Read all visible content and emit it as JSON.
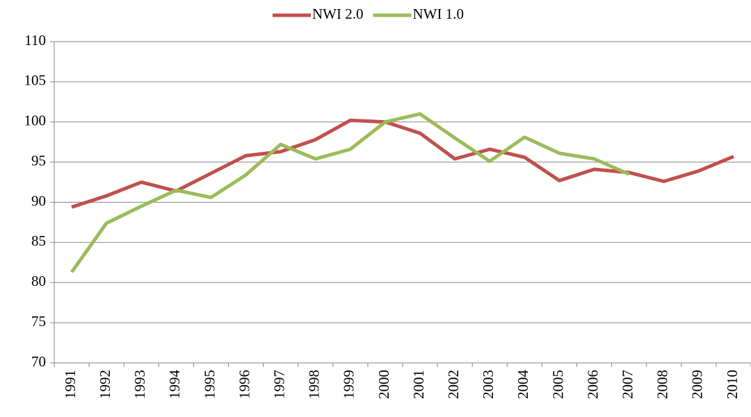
{
  "chart_data": {
    "type": "line",
    "categories": [
      "1991",
      "1992",
      "1993",
      "1994",
      "1995",
      "1996",
      "1997",
      "1998",
      "1999",
      "2000",
      "2001",
      "2002",
      "2003",
      "2004",
      "2005",
      "2006",
      "2007",
      "2008",
      "2009",
      "2010"
    ],
    "series": [
      {
        "name": "NWI 2.0",
        "color": "#c0504d",
        "values": [
          89.4,
          90.8,
          92.5,
          91.4,
          93.6,
          95.8,
          96.3,
          97.8,
          100.2,
          100,
          98.6,
          95.4,
          96.6,
          95.6,
          92.7,
          94.1,
          93.7,
          92.6,
          93.9,
          95.7
        ]
      },
      {
        "name": "NWI 1.0",
        "color": "#9bbb59",
        "values": [
          81.3,
          87.4,
          89.5,
          91.5,
          90.6,
          93.4,
          97.2,
          95.4,
          96.6,
          100,
          101,
          98,
          95.1,
          98.1,
          96.1,
          95.4,
          93.5,
          null,
          null,
          null
        ]
      }
    ],
    "ylim": [
      70,
      110
    ],
    "yticks": [
      70,
      75,
      80,
      85,
      90,
      95,
      100,
      105,
      110
    ],
    "grid": true,
    "legend": "top"
  }
}
